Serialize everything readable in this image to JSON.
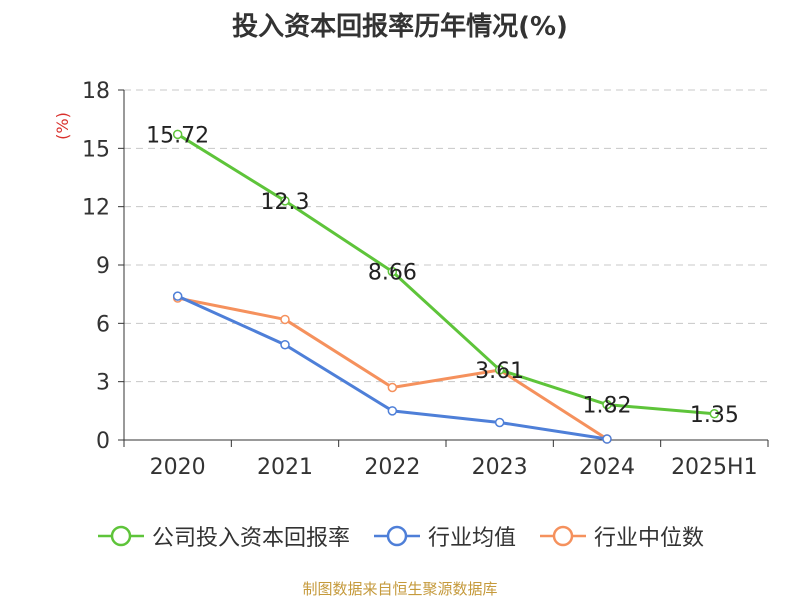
{
  "source_note": "制图数据来自恒生聚源数据库",
  "chart_data": {
    "type": "line",
    "title": "投入资本回报率历年情况(%)",
    "ylabel": "(%)",
    "categories": [
      "2020",
      "2021",
      "2022",
      "2023",
      "2024",
      "2025H1"
    ],
    "ylim": [
      0,
      18
    ],
    "yticks": [
      "0",
      "3",
      "6",
      "9",
      "12",
      "15",
      "18"
    ],
    "grid": true,
    "legend_position": "bottom",
    "series": [
      {
        "name": "公司投入资本回报率",
        "color": "#5ec43a",
        "values": [
          15.72,
          12.3,
          8.66,
          3.61,
          1.82,
          1.35
        ],
        "labels": [
          "15.72",
          "12.3",
          "8.66",
          "3.61",
          "1.82",
          "1.35"
        ]
      },
      {
        "name": "行业均值",
        "color": "#4e7fd8",
        "values": [
          7.4,
          4.9,
          1.5,
          0.9,
          0.05,
          null
        ]
      },
      {
        "name": "行业中位数",
        "color": "#f5915d",
        "values": [
          7.3,
          6.2,
          2.7,
          3.6,
          0.05,
          null
        ]
      }
    ]
  }
}
